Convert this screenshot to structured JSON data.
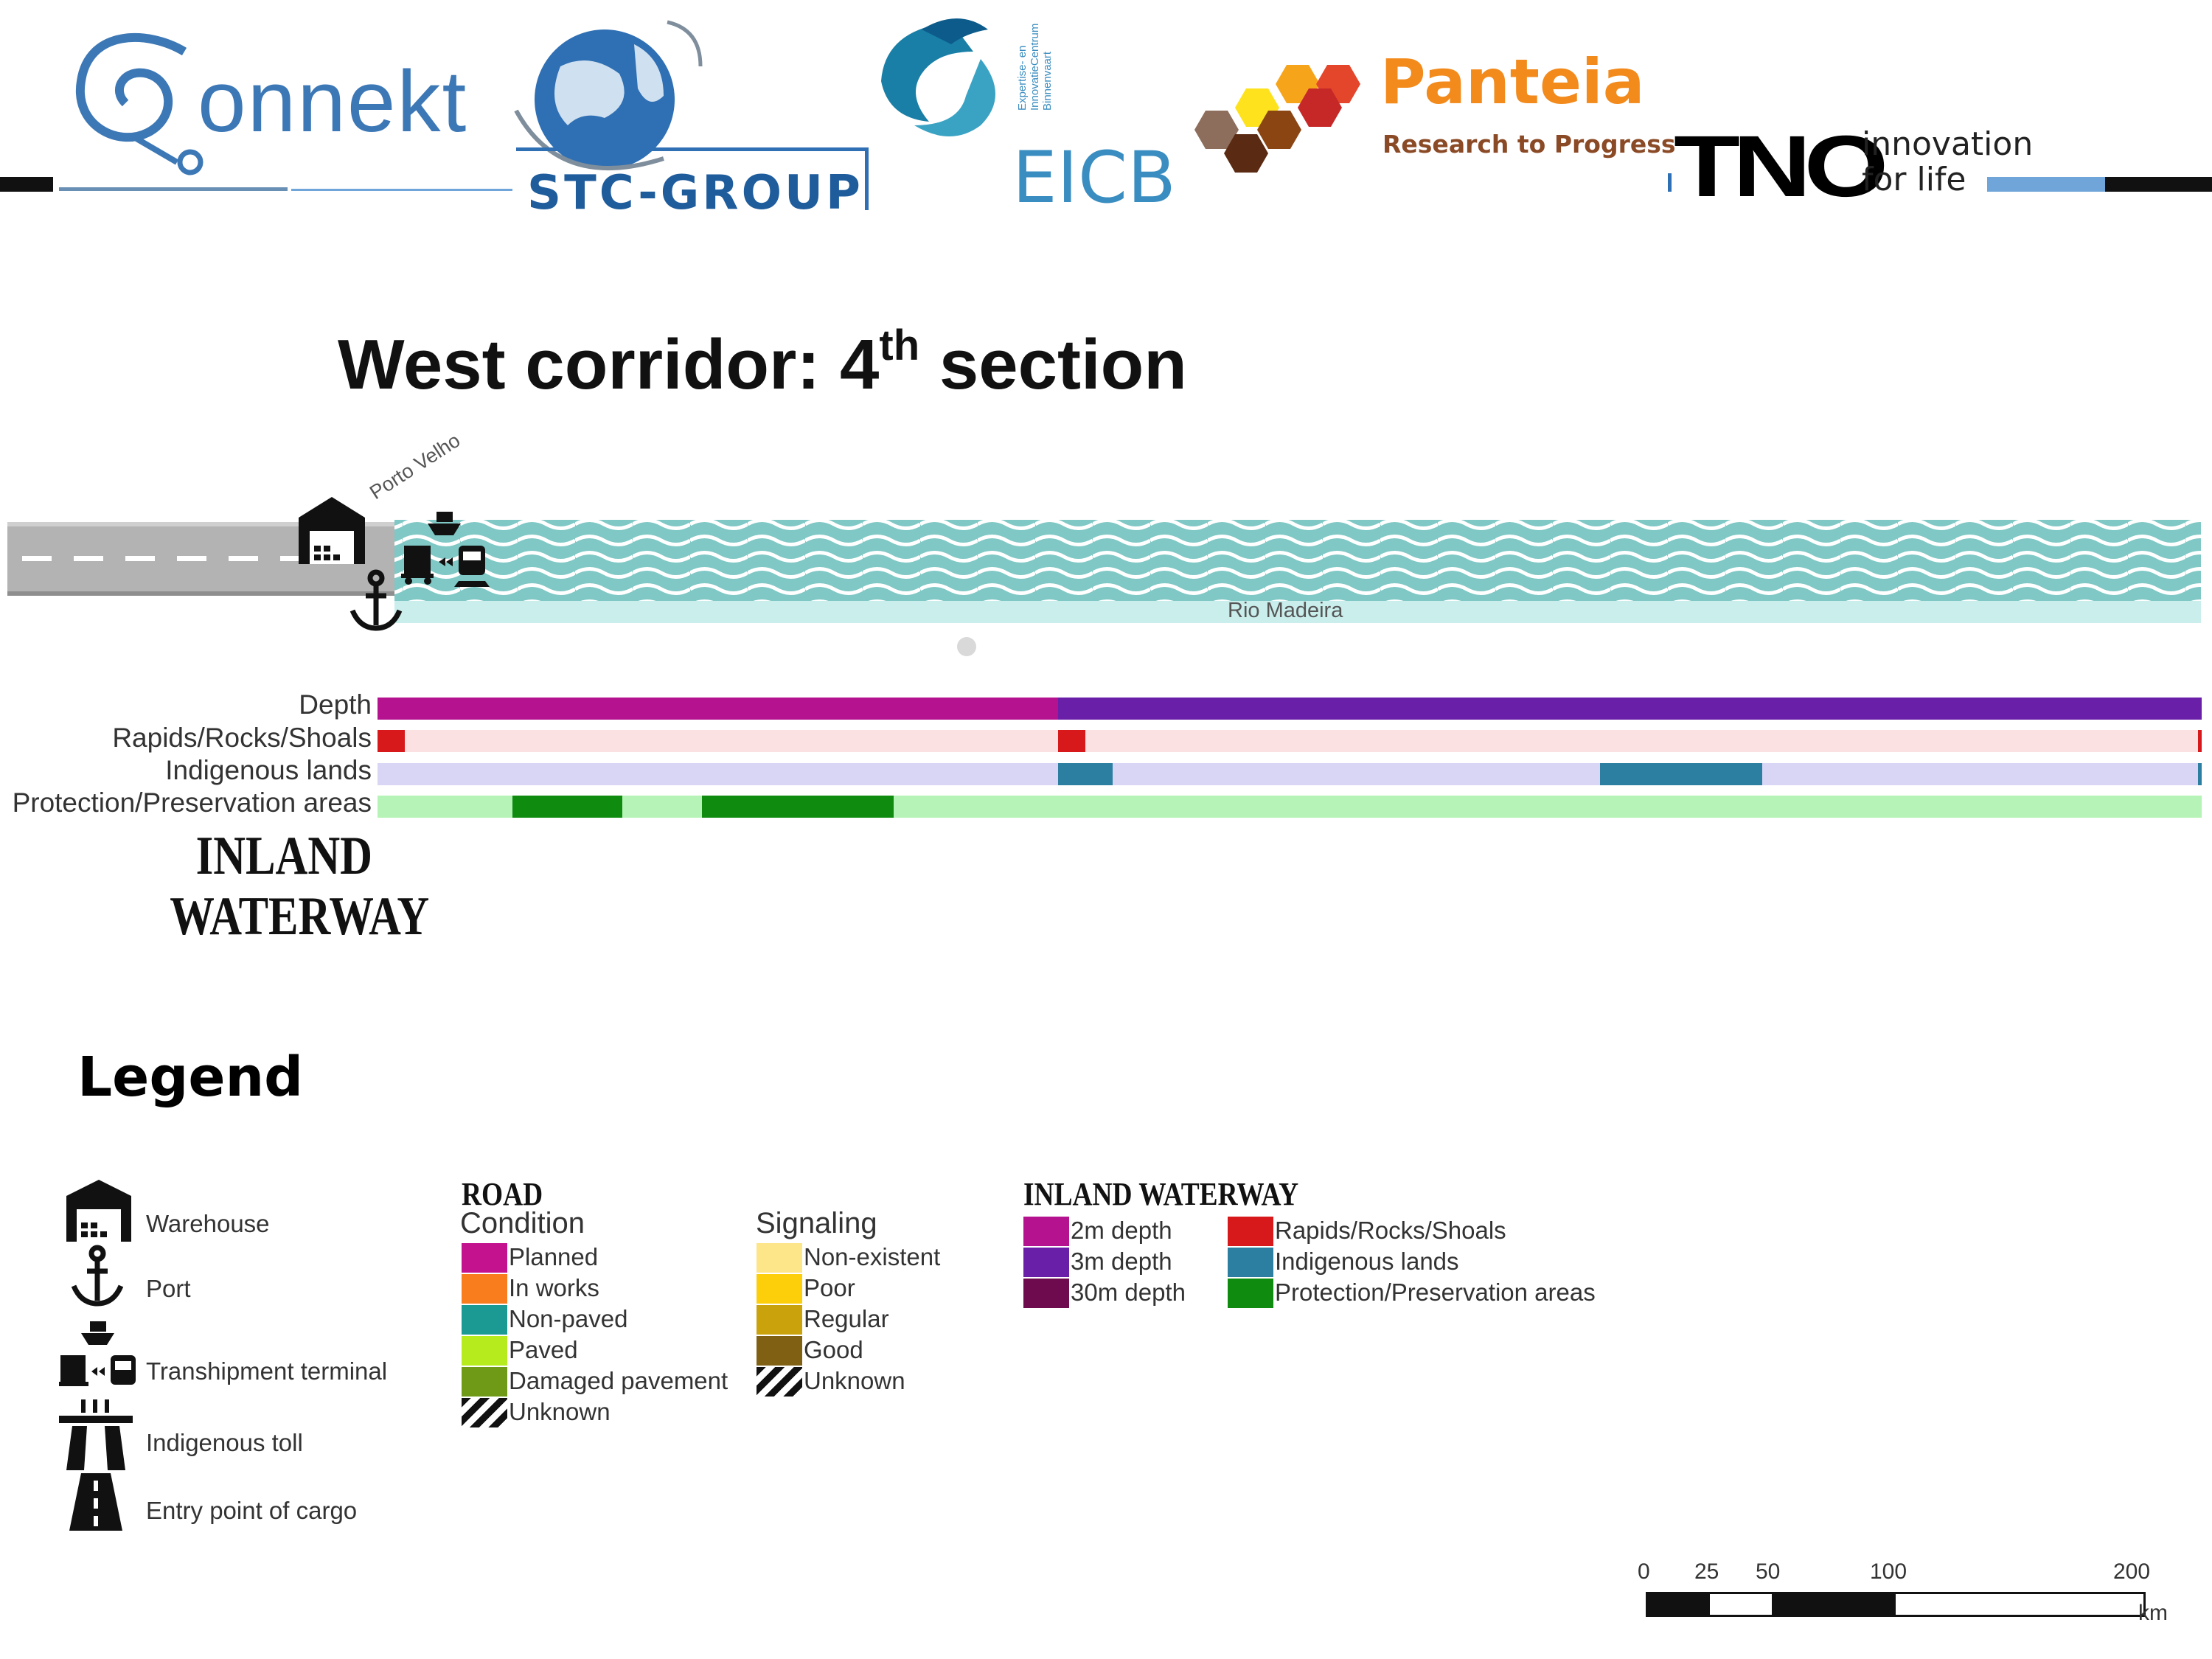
{
  "logos": {
    "connekt": "onnekt",
    "stc": "STC-GROUP",
    "eicb": "EICB",
    "eicb_vertical": [
      "Expertise- en",
      "InnovatieCentrum",
      "Binnenvaart"
    ],
    "panteia": "Panteia",
    "panteia_tagline": "Research to Progress",
    "tno": "TNO",
    "tno_tagline_1": "innovation",
    "tno_tagline_2": "for life"
  },
  "title": {
    "main": "West corridor: 4",
    "sup": "th",
    "rest": " section"
  },
  "map": {
    "city_label": "Porto Velho",
    "river_label": "Rio Madeira"
  },
  "tracks": [
    {
      "label": "Depth",
      "base": "#6a1fa8",
      "segments": [
        {
          "from": 0.0,
          "to": 0.373,
          "color": "#b5128f"
        },
        {
          "from": 0.373,
          "to": 1.0,
          "color": "#6a1fa8"
        }
      ]
    },
    {
      "label": "Rapids/Rocks/Shoals",
      "base": "#fbe1e1",
      "segments": [
        {
          "from": 0.0,
          "to": 0.015,
          "color": "#d7191c"
        },
        {
          "from": 0.373,
          "to": 0.388,
          "color": "#d7191c"
        },
        {
          "from": 0.998,
          "to": 1.0,
          "color": "#d7191c"
        }
      ]
    },
    {
      "label": "Indigenous lands",
      "base": "#d9d6f5",
      "segments": [
        {
          "from": 0.373,
          "to": 0.403,
          "color": "#2c7fa0"
        },
        {
          "from": 0.67,
          "to": 0.759,
          "color": "#2c7fa0"
        },
        {
          "from": 0.998,
          "to": 1.0,
          "color": "#2c7fa0"
        }
      ]
    },
    {
      "label": "Protection/Preservation areas",
      "base": "#b6f3b6",
      "segments": [
        {
          "from": 0.074,
          "to": 0.134,
          "color": "#0f8c0f"
        },
        {
          "from": 0.178,
          "to": 0.283,
          "color": "#0f8c0f"
        }
      ]
    }
  ],
  "inland_title": [
    "INLAND",
    "WATERWAY"
  ],
  "legend": {
    "title": "Legend",
    "symbols": [
      {
        "icon": "warehouse-icon",
        "label": "Warehouse"
      },
      {
        "icon": "anchor-icon",
        "label": "Port"
      },
      {
        "icon": "transhipment-icon",
        "label": "Transhipment terminal"
      },
      {
        "icon": "toll-icon",
        "label": "Indigenous toll"
      },
      {
        "icon": "road-entry-icon",
        "label": "Entry point of cargo"
      }
    ],
    "road": {
      "title": "ROAD",
      "subtitle": "Condition",
      "items": [
        {
          "color": "#c4128f",
          "label": "Planned"
        },
        {
          "color": "#f97d1c",
          "label": "In works"
        },
        {
          "color": "#1a9a92",
          "label": "Non-paved"
        },
        {
          "color": "#b6ec1e",
          "label": "Paved"
        },
        {
          "color": "#6f9a17",
          "label": "Damaged pavement"
        },
        {
          "color": "hatch",
          "label": "Unknown"
        }
      ]
    },
    "signaling": {
      "title": "Signaling",
      "items": [
        {
          "color": "#fde58a",
          "label": "Non-existent"
        },
        {
          "color": "#fccf0a",
          "label": "Poor"
        },
        {
          "color": "#c9a20c",
          "label": "Regular"
        },
        {
          "color": "#806114",
          "label": "Good"
        },
        {
          "color": "hatch",
          "label": "Unknown"
        }
      ]
    },
    "waterway": {
      "title": "INLAND WATERWAY",
      "depth_items": [
        {
          "color": "#b5128f",
          "label": "2m depth"
        },
        {
          "color": "#6a1fa8",
          "label": "3m depth"
        },
        {
          "color": "#6e0a4e",
          "label": "30m depth"
        }
      ],
      "other_items": [
        {
          "color": "#d7191c",
          "label": "Rapids/Rocks/Shoals"
        },
        {
          "color": "#2c7fa0",
          "label": "Indigenous lands"
        },
        {
          "color": "#0f8c0f",
          "label": "Protection/Preservation areas"
        }
      ]
    }
  },
  "scale_bar": {
    "ticks": [
      "0",
      "25",
      "50",
      "100",
      "200"
    ],
    "unit": "km"
  }
}
